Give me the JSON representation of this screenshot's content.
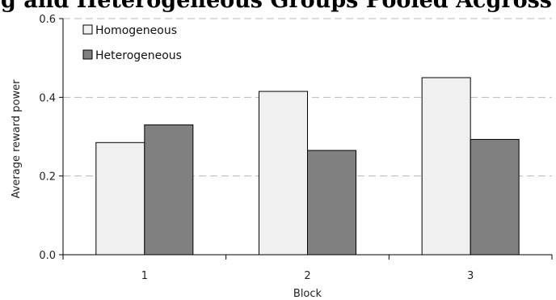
{
  "chart_data": {
    "type": "bar",
    "title": "g  and Heterogeneous Groups  Pooled Acgross Early and Late Sessions",
    "xlabel": "Block",
    "ylabel": "Average reward power",
    "categories": [
      "1",
      "2",
      "3"
    ],
    "series": [
      {
        "name": "Homogeneous",
        "values": [
          0.285,
          0.415,
          0.45
        ],
        "color": "#f0f0f0"
      },
      {
        "name": "Heterogeneous",
        "values": [
          0.33,
          0.265,
          0.293
        ],
        "color": "#808080"
      }
    ],
    "ylim": [
      0,
      0.6
    ],
    "yticks": [
      "0.0",
      "0.2",
      "0.4",
      "0.6"
    ],
    "grid": true,
    "legend_position": "top-left"
  }
}
